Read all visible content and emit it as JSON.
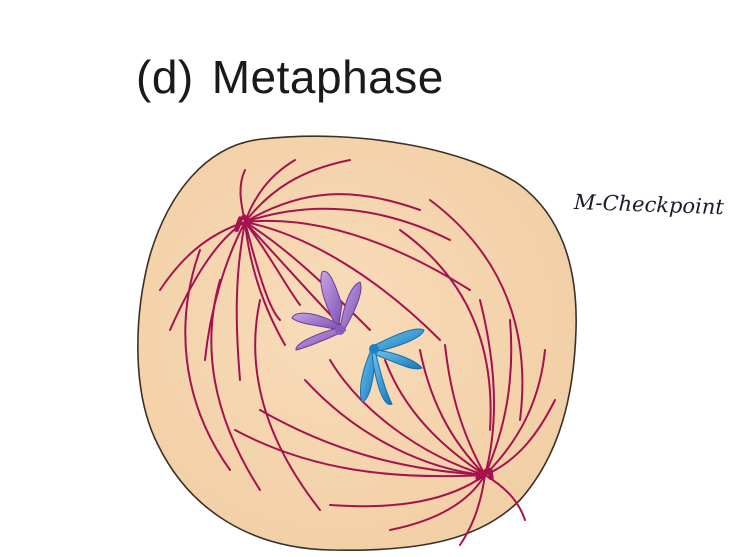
{
  "title": {
    "panel_label": "(d)",
    "phase_name": "Metaphase"
  },
  "annotation": {
    "handwritten_note": "M-Checkpoint"
  },
  "colors": {
    "cell_fill": "#f6d6b1",
    "cell_outline": "#3a3028",
    "spindle_fibers": "#a5134f",
    "chromosome_purple": "#9a6fc4",
    "chromosome_blue": "#2f96d6"
  },
  "icons": [
    "spindle-pole-top-icon",
    "spindle-pole-bottom-icon",
    "chromosome-purple-icon",
    "chromosome-blue-icon"
  ]
}
